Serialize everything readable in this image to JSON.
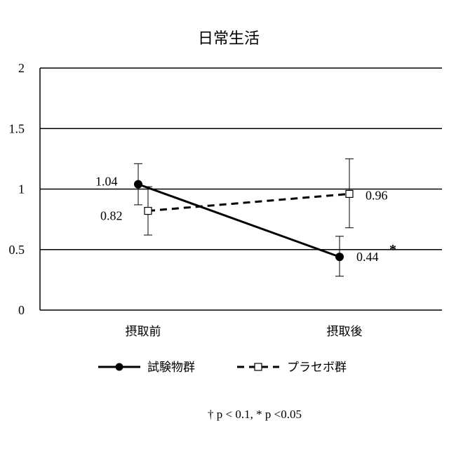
{
  "chart_data": {
    "type": "line",
    "title": "日常生活",
    "categories": [
      "摂取前",
      "摂取後"
    ],
    "ylim": [
      0,
      2
    ],
    "yticks": [
      "0",
      "0.5",
      "1",
      "1.5",
      "2"
    ],
    "ytick_values": [
      0,
      0.5,
      1,
      1.5,
      2
    ],
    "grid": true,
    "legend_placement": "bottom",
    "series": [
      {
        "name": "試験物群",
        "values": [
          1.04,
          0.44
        ],
        "error_low": [
          0.87,
          0.28
        ],
        "error_high": [
          1.21,
          0.61
        ],
        "labels": [
          "1.04",
          "0.44"
        ],
        "marker": "filled-circle",
        "line_style": "solid"
      },
      {
        "name": "プラセボ群",
        "values": [
          0.82,
          0.96
        ],
        "error_low": [
          0.62,
          0.68
        ],
        "error_high": [
          1.02,
          1.25
        ],
        "labels": [
          "0.82",
          "0.96"
        ],
        "marker": "open-square",
        "line_style": "dashed"
      }
    ],
    "annotations": [
      {
        "text": "*",
        "series": 0,
        "category": 1
      }
    ],
    "footnote": "† p < 0.1,   * p <0.05"
  }
}
